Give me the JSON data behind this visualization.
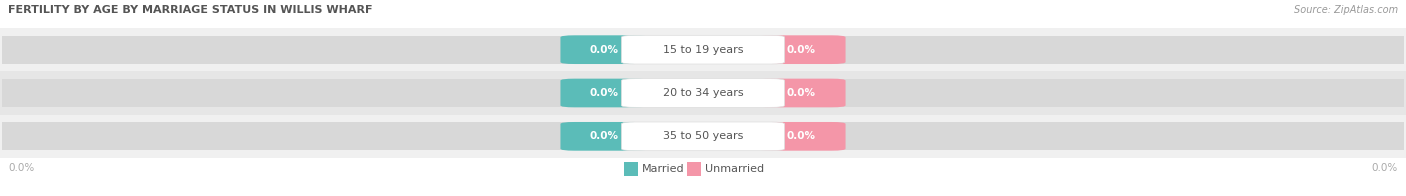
{
  "title": "FERTILITY BY AGE BY MARRIAGE STATUS IN WILLIS WHARF",
  "source": "Source: ZipAtlas.com",
  "categories": [
    "15 to 19 years",
    "20 to 34 years",
    "35 to 50 years"
  ],
  "married_values": [
    0.0,
    0.0,
    0.0
  ],
  "unmarried_values": [
    0.0,
    0.0,
    0.0
  ],
  "married_color": "#5bbcb8",
  "unmarried_color": "#f496a8",
  "row_bg_even": "#f0f0f0",
  "row_bg_odd": "#e6e6e6",
  "bar_track_color": "#d8d8d8",
  "cat_box_color": "#ffffff",
  "cat_box_border": "#dddddd",
  "title_color": "#555555",
  "label_color": "#555555",
  "source_color": "#999999",
  "axis_label_color": "#aaaaaa",
  "background_color": "#ffffff",
  "figsize": [
    14.06,
    1.96
  ],
  "dpi": 100
}
